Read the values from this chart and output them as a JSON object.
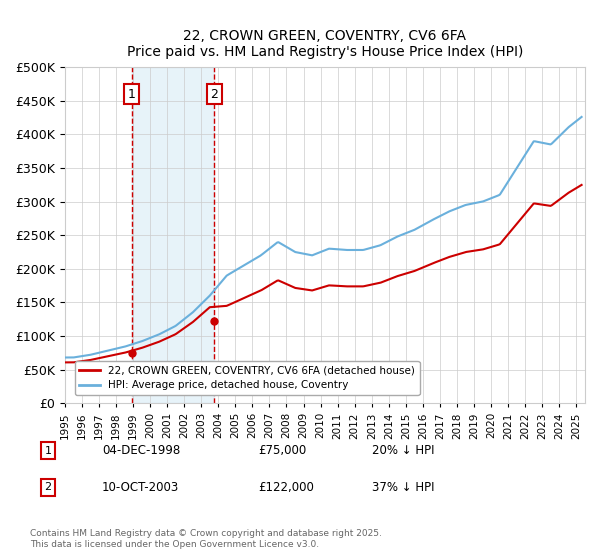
{
  "title": "22, CROWN GREEN, COVENTRY, CV6 6FA",
  "subtitle": "Price paid vs. HM Land Registry's House Price Index (HPI)",
  "ylabel_ticks": [
    "£0",
    "£50K",
    "£100K",
    "£150K",
    "£200K",
    "£250K",
    "£300K",
    "£350K",
    "£400K",
    "£450K",
    "£500K"
  ],
  "ytick_values": [
    0,
    50000,
    100000,
    150000,
    200000,
    250000,
    300000,
    350000,
    400000,
    450000,
    500000
  ],
  "ylim": [
    0,
    500000
  ],
  "hpi_color": "#6ab0dc",
  "price_color": "#cc0000",
  "transaction_color": "#cc0000",
  "annotation_box_color": "#cc0000",
  "shaded_color": "#d0e8f5",
  "shaded_alpha": 0.5,
  "legend_label_price": "22, CROWN GREEN, COVENTRY, CV6 6FA (detached house)",
  "legend_label_hpi": "HPI: Average price, detached house, Coventry",
  "transactions": [
    {
      "id": 1,
      "date": "04-DEC-1998",
      "price": 75000,
      "pct": "20%",
      "direction": "↓",
      "year": 1998.92
    },
    {
      "id": 2,
      "date": "10-OCT-2003",
      "price": 122000,
      "pct": "37%",
      "direction": "↓",
      "year": 2003.78
    }
  ],
  "footnote": "Contains HM Land Registry data © Crown copyright and database right 2025.\nThis data is licensed under the Open Government Licence v3.0.",
  "background_color": "#ffffff",
  "plot_bg_color": "#ffffff",
  "grid_color": "#cccccc"
}
